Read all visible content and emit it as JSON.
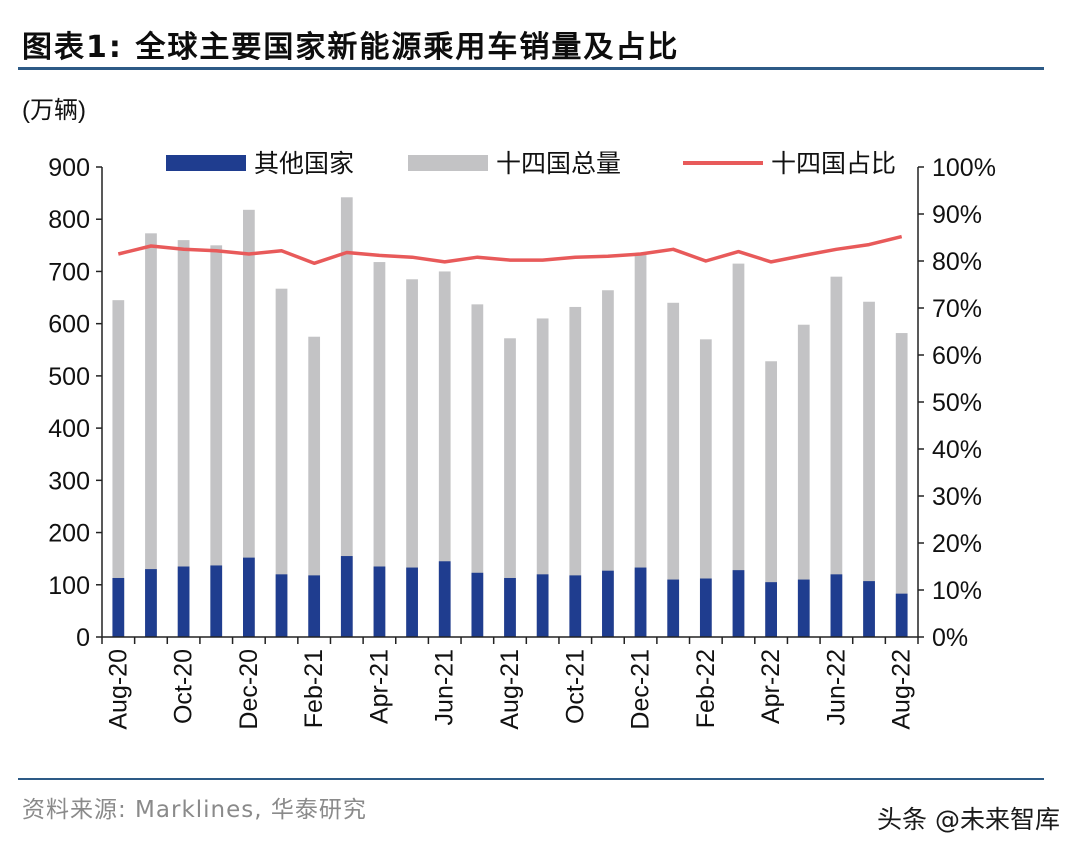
{
  "header": {
    "title": "图表1:  全球主要国家新能源乘用车销量及占比"
  },
  "footer": {
    "source": "资料来源: Marklines, 华泰研究",
    "watermark": "头条 @未来智库"
  },
  "chart_data": {
    "type": "bar",
    "unit_label": "(万辆)",
    "categories": [
      "Aug-20",
      "Sep-20",
      "Oct-20",
      "Nov-20",
      "Dec-20",
      "Jan-21",
      "Feb-21",
      "Mar-21",
      "Apr-21",
      "May-21",
      "Jun-21",
      "Jul-21",
      "Aug-21",
      "Sep-21",
      "Oct-21",
      "Nov-21",
      "Dec-21",
      "Jan-22",
      "Feb-22",
      "Mar-22",
      "Apr-22",
      "May-22",
      "Jun-22",
      "Jul-22",
      "Aug-22"
    ],
    "x_tick_labels": [
      "Aug-20",
      "Oct-20",
      "Dec-20",
      "Feb-21",
      "Apr-21",
      "Jun-21",
      "Aug-21",
      "Oct-21",
      "Dec-21",
      "Feb-22",
      "Apr-22",
      "Jun-22",
      "Aug-22"
    ],
    "series": [
      {
        "name": "其他国家",
        "axis": "left",
        "color": "#1f3d8f",
        "values": [
          113,
          130,
          135,
          137,
          152,
          120,
          118,
          155,
          135,
          133,
          145,
          123,
          113,
          120,
          118,
          127,
          133,
          110,
          112,
          128,
          105,
          110,
          120,
          107,
          83
        ]
      },
      {
        "name": "十四国总量",
        "axis": "left",
        "color": "#c3c3c5",
        "values": [
          645,
          773,
          760,
          750,
          818,
          667,
          575,
          842,
          718,
          685,
          700,
          637,
          572,
          610,
          632,
          664,
          733,
          640,
          570,
          715,
          528,
          598,
          690,
          642,
          582
        ]
      },
      {
        "name": "十四国占比",
        "axis": "right",
        "type": "line",
        "color": "#e85a5a",
        "values": [
          81.5,
          83.2,
          82.5,
          82.2,
          81.5,
          82.2,
          79.5,
          81.8,
          81.2,
          80.8,
          79.8,
          80.8,
          80.2,
          80.2,
          80.8,
          81.0,
          81.5,
          82.5,
          80.0,
          82.0,
          79.8,
          81.2,
          82.5,
          83.5,
          85.2
        ]
      }
    ],
    "y_left": {
      "range": [
        0,
        900
      ],
      "ticks": [
        "900",
        "800",
        "700",
        "600",
        "500",
        "400",
        "300",
        "200",
        "100",
        "0"
      ]
    },
    "y_right": {
      "range": [
        0,
        100
      ],
      "ticks": [
        "100%",
        "90%",
        "80%",
        "70%",
        "60%",
        "50%",
        "40%",
        "30%",
        "20%",
        "10%",
        "0%"
      ]
    },
    "legend": {
      "position": "top",
      "items": [
        "其他国家",
        "十四国总量",
        "十四国占比"
      ]
    },
    "grid": false
  }
}
